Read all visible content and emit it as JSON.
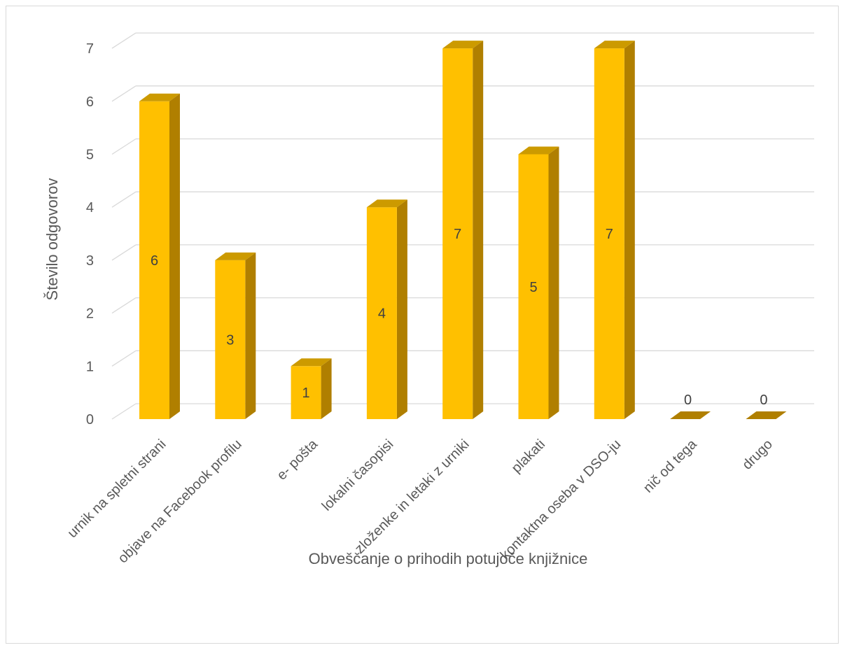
{
  "chart_data": {
    "type": "bar",
    "categories": [
      "urnik na spletni strani",
      "objave na Facebook profilu",
      "e- pošta",
      "lokalni časopisi",
      "zloženke in letaki z urniki",
      "plakati",
      "kontaktna oseba v DSO-ju",
      "nič od tega",
      "drugo"
    ],
    "values": [
      6,
      3,
      1,
      4,
      7,
      5,
      7,
      0,
      0
    ],
    "xlabel": "Obveščanje o prihodih potujoče knjižnice",
    "ylabel": "Število odgovorov",
    "ylim": [
      0,
      7
    ],
    "yticks": [
      "0",
      "1",
      "2",
      "3",
      "4",
      "5",
      "6",
      "7"
    ],
    "grid": true,
    "legend": "none",
    "colors": {
      "bar_front": "#FFC000",
      "bar_side": "#B07F00",
      "bar_top": "#CC9A00",
      "grid": "#D9D9D9"
    }
  }
}
